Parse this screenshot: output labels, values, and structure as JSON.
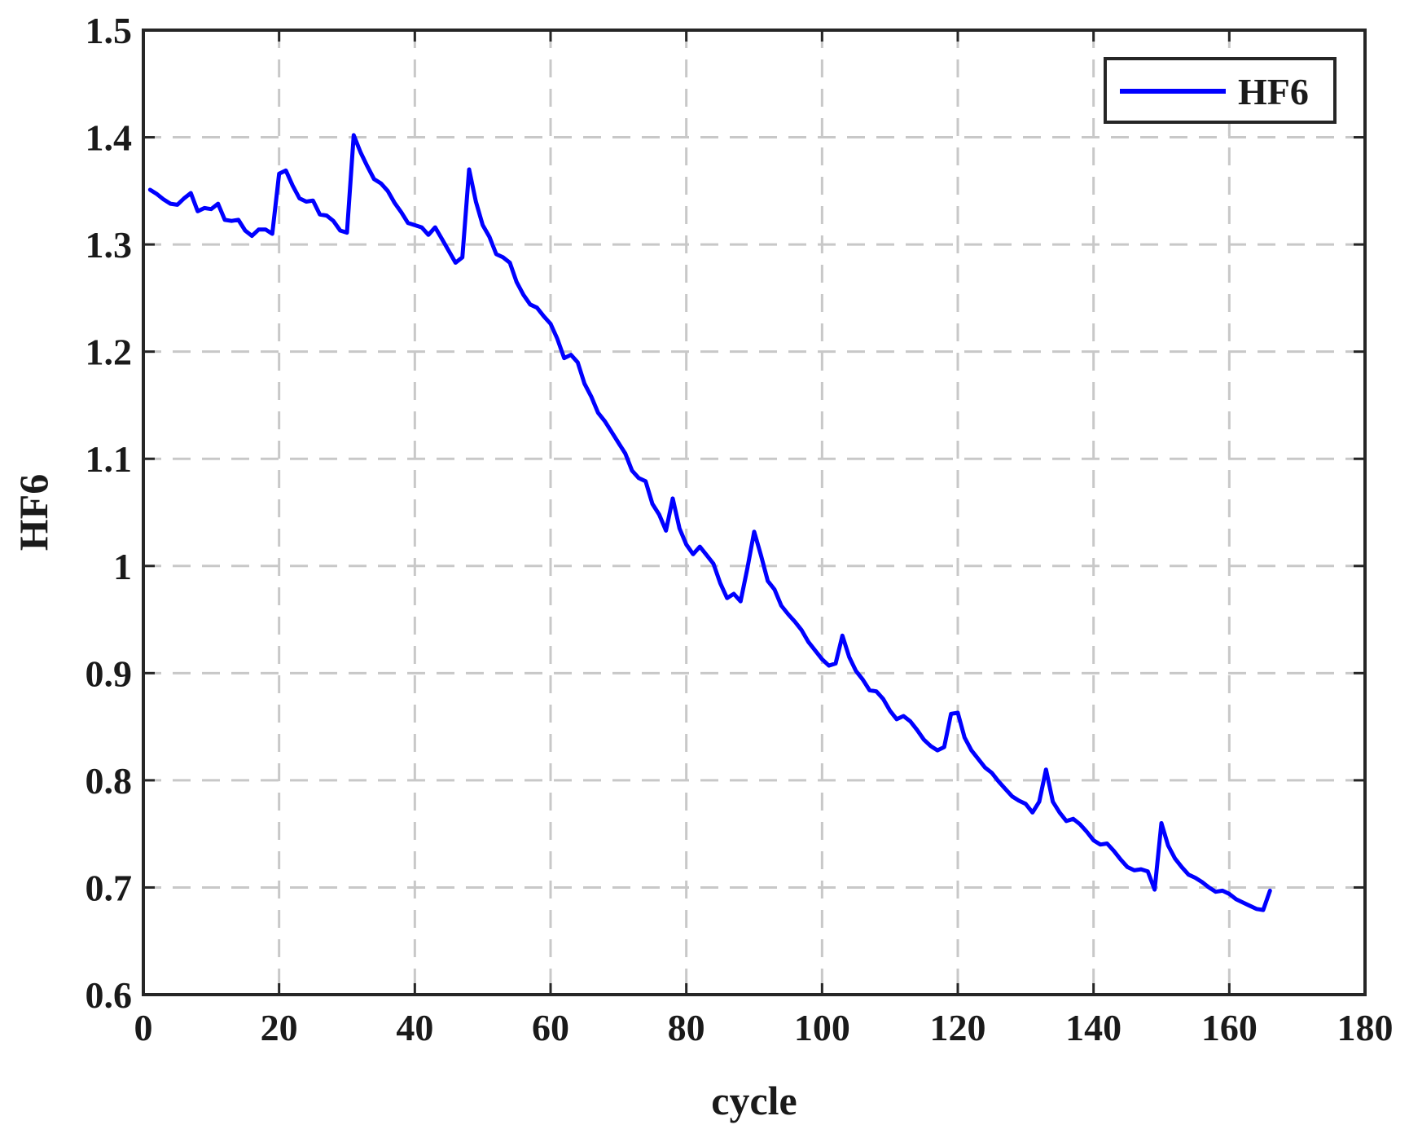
{
  "chart_data": {
    "type": "line",
    "title": "",
    "xlabel": "cycle",
    "ylabel": "HF6",
    "xlim": [
      0,
      180
    ],
    "ylim": [
      0.6,
      1.5
    ],
    "xticks": [
      0,
      20,
      40,
      60,
      80,
      100,
      120,
      140,
      160,
      180
    ],
    "yticks": [
      0.6,
      0.7,
      0.8,
      0.9,
      1,
      1.1,
      1.2,
      1.3,
      1.4,
      1.5
    ],
    "xtick_labels": [
      "0",
      "20",
      "40",
      "60",
      "80",
      "100",
      "120",
      "140",
      "160",
      "180"
    ],
    "ytick_labels": [
      "0.6",
      "0.7",
      "0.8",
      "0.9",
      "1",
      "1.1",
      "1.2",
      "1.3",
      "1.4",
      "1.5"
    ],
    "grid": true,
    "legend": {
      "position": "top-right",
      "entries": [
        "HF6"
      ]
    },
    "series": [
      {
        "name": "HF6",
        "color": "#0000ff",
        "x": [
          1,
          2,
          3,
          4,
          5,
          6,
          7,
          8,
          9,
          10,
          11,
          12,
          13,
          14,
          15,
          16,
          17,
          18,
          19,
          20,
          21,
          22,
          23,
          24,
          25,
          26,
          27,
          28,
          29,
          30,
          31,
          32,
          33,
          34,
          35,
          36,
          37,
          38,
          39,
          40,
          41,
          42,
          43,
          44,
          45,
          46,
          47,
          48,
          49,
          50,
          51,
          52,
          53,
          54,
          55,
          56,
          57,
          58,
          59,
          60,
          61,
          62,
          63,
          64,
          65,
          66,
          67,
          68,
          69,
          70,
          71,
          72,
          73,
          74,
          75,
          76,
          77,
          78,
          79,
          80,
          81,
          82,
          83,
          84,
          85,
          86,
          87,
          88,
          89,
          90,
          91,
          92,
          93,
          94,
          95,
          96,
          97,
          98,
          99,
          100,
          101,
          102,
          103,
          104,
          105,
          106,
          107,
          108,
          109,
          110,
          111,
          112,
          113,
          114,
          115,
          116,
          117,
          118,
          119,
          120,
          121,
          122,
          123,
          124,
          125,
          126,
          127,
          128,
          129,
          130,
          131,
          132,
          133,
          134,
          135,
          136,
          137,
          138,
          139,
          140,
          141,
          142,
          143,
          144,
          145,
          146,
          147,
          148,
          149,
          150,
          151,
          152,
          153,
          154,
          155,
          156,
          157,
          158,
          159,
          160,
          161,
          162,
          163,
          164,
          165,
          166
        ],
        "y": [
          1.351,
          1.347,
          1.342,
          1.338,
          1.337,
          1.343,
          1.348,
          1.331,
          1.334,
          1.333,
          1.338,
          1.323,
          1.322,
          1.323,
          1.313,
          1.308,
          1.314,
          1.314,
          1.31,
          1.366,
          1.369,
          1.355,
          1.343,
          1.34,
          1.341,
          1.328,
          1.327,
          1.322,
          1.313,
          1.311,
          1.402,
          1.386,
          1.373,
          1.361,
          1.357,
          1.35,
          1.339,
          1.33,
          1.32,
          1.318,
          1.316,
          1.309,
          1.316,
          1.305,
          1.294,
          1.283,
          1.288,
          1.37,
          1.34,
          1.318,
          1.307,
          1.291,
          1.288,
          1.283,
          1.265,
          1.253,
          1.244,
          1.241,
          1.233,
          1.226,
          1.212,
          1.194,
          1.197,
          1.19,
          1.17,
          1.158,
          1.143,
          1.135,
          1.125,
          1.115,
          1.105,
          1.089,
          1.082,
          1.079,
          1.058,
          1.048,
          1.033,
          1.063,
          1.035,
          1.02,
          1.011,
          1.018,
          1.01,
          1.002,
          0.984,
          0.97,
          0.974,
          0.967,
          0.998,
          1.032,
          1.01,
          0.986,
          0.978,
          0.963,
          0.955,
          0.948,
          0.94,
          0.929,
          0.921,
          0.913,
          0.907,
          0.909,
          0.935,
          0.915,
          0.902,
          0.894,
          0.884,
          0.883,
          0.876,
          0.865,
          0.857,
          0.86,
          0.855,
          0.847,
          0.838,
          0.832,
          0.828,
          0.831,
          0.862,
          0.863,
          0.84,
          0.828,
          0.82,
          0.812,
          0.807,
          0.799,
          0.792,
          0.785,
          0.781,
          0.778,
          0.77,
          0.78,
          0.81,
          0.78,
          0.77,
          0.762,
          0.764,
          0.759,
          0.752,
          0.744,
          0.74,
          0.741,
          0.734,
          0.726,
          0.719,
          0.716,
          0.717,
          0.715,
          0.698,
          0.76,
          0.739,
          0.727,
          0.719,
          0.712,
          0.709,
          0.705,
          0.7,
          0.696,
          0.697,
          0.694,
          0.689,
          0.686,
          0.683,
          0.68,
          0.679,
          0.697
        ]
      }
    ]
  }
}
